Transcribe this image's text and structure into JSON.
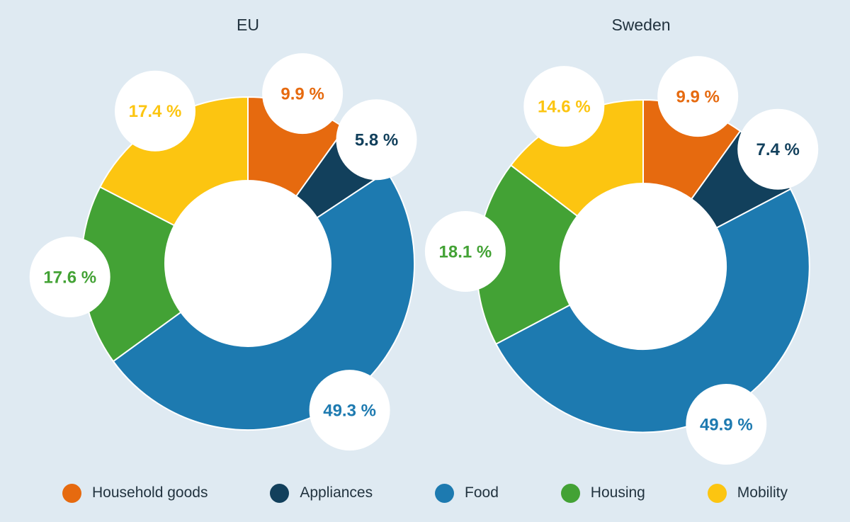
{
  "page": {
    "background_color": "#dfeaf2",
    "text_color": "#22333f"
  },
  "chart_data": [
    {
      "type": "pie",
      "subtype": "donut",
      "title": "EU",
      "categories": [
        "Household goods",
        "Appliances",
        "Food",
        "Housing",
        "Mobility"
      ],
      "values": [
        9.9,
        5.8,
        49.3,
        17.6,
        17.4
      ],
      "value_labels": [
        "9.9 %",
        "5.8 %",
        "49.3 %",
        "17.6 %",
        "17.4 %"
      ],
      "colors": [
        "#e66a0f",
        "#12405c",
        "#1d7ab0",
        "#43a235",
        "#fcc511"
      ],
      "start_angle_deg": 0,
      "direction": "clockwise",
      "legend_position": "bottom"
    },
    {
      "type": "pie",
      "subtype": "donut",
      "title": "Sweden",
      "categories": [
        "Household goods",
        "Appliances",
        "Food",
        "Housing",
        "Mobility"
      ],
      "values": [
        9.9,
        7.4,
        49.9,
        18.1,
        14.6
      ],
      "value_labels": [
        "9.9 %",
        "7.4 %",
        "49.9 %",
        "18.1 %",
        "14.6 %"
      ],
      "colors": [
        "#e66a0f",
        "#12405c",
        "#1d7ab0",
        "#43a235",
        "#fcc511"
      ],
      "start_angle_deg": 0,
      "direction": "clockwise",
      "legend_position": "bottom"
    }
  ],
  "legend": {
    "items": [
      {
        "label": "Household goods",
        "color": "#e66a0f"
      },
      {
        "label": "Appliances",
        "color": "#12405c"
      },
      {
        "label": "Food",
        "color": "#1d7ab0"
      },
      {
        "label": "Housing",
        "color": "#43a235"
      },
      {
        "label": "Mobility",
        "color": "#fcc511"
      }
    ]
  }
}
